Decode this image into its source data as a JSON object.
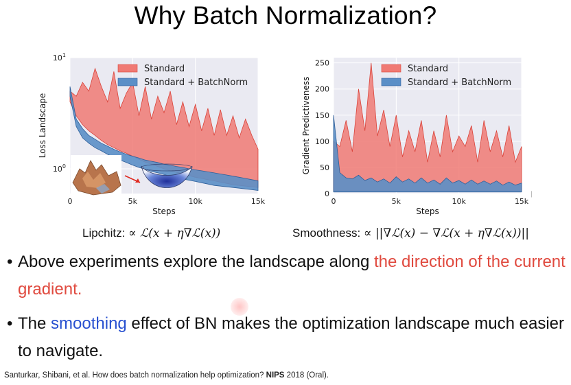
{
  "slide": {
    "title": "Why Batch Normalization?",
    "formula_left": {
      "label": "Lipchitz:",
      "expr": "∝ ℒ(x + η∇ℒ(x))"
    },
    "formula_right": {
      "label": "Smoothness:",
      "expr": "∝ ||∇ℒ(x) − ∇ℒ(x + η∇ℒ(x))||"
    },
    "bullets": [
      {
        "parts": [
          {
            "text": "Above experiments explore the landscape along ",
            "style": "normal"
          },
          {
            "text": "the direction of the current gradient.",
            "style": "red"
          }
        ]
      },
      {
        "parts": [
          {
            "text": "The ",
            "style": "normal"
          },
          {
            "text": "smoothing",
            "style": "blue"
          },
          {
            "text": " effect of BN makes the optimization landscape much easier to navigate.",
            "style": "normal"
          }
        ]
      }
    ],
    "citation": {
      "text": "Santurkar, Shibani, et al. How does batch normalization help optimization? ",
      "venue": "NIPS",
      "tail": " 2018 (Oral)."
    }
  },
  "colors": {
    "standard": "#f07a74",
    "standard_edge": "#d9433a",
    "batchnorm": "#5b8fc7",
    "batchnorm_edge": "#2e5f9a",
    "title_red": "#e04a3f",
    "smoothing_blue": "#2850d0"
  },
  "icons": {
    "left_surface": "rough-loss-surface-3d",
    "right_surface": "smooth-bowl-surface-3d",
    "arrow": "red-arrow-right-icon"
  },
  "chart_data": [
    {
      "type": "area",
      "xlabel": "Steps",
      "ylabel": "Loss Landscape",
      "yscale": "log",
      "xlim": [
        0,
        15000
      ],
      "ylim": [
        0.6,
        10
      ],
      "xticks": [
        {
          "v": 0,
          "label": "0"
        },
        {
          "v": 5000,
          "label": "5k"
        },
        {
          "v": 10000,
          "label": "10k"
        },
        {
          "v": 15000,
          "label": "15k"
        }
      ],
      "yticks": [
        {
          "v": 10,
          "base": "10",
          "exp": "1"
        },
        {
          "v": 1,
          "base": "10",
          "exp": "0"
        }
      ],
      "legend": "top-right",
      "grid": true,
      "series": [
        {
          "name": "Standard",
          "x": [
            0,
            500,
            1000,
            1500,
            2000,
            2500,
            3000,
            3500,
            4000,
            4500,
            5000,
            5500,
            6000,
            6500,
            7000,
            7500,
            8000,
            8500,
            9000,
            9500,
            10000,
            10500,
            11000,
            11500,
            12000,
            12500,
            13000,
            13500,
            14000,
            14500,
            15000
          ],
          "lower": [
            4.0,
            3.0,
            2.5,
            2.2,
            2.0,
            1.8,
            1.65,
            1.55,
            1.45,
            1.38,
            1.3,
            1.22,
            1.15,
            1.1,
            1.05,
            1.0,
            0.96,
            0.93,
            0.9,
            0.87,
            0.84,
            0.82,
            0.8,
            0.78,
            0.76,
            0.74,
            0.72,
            0.71,
            0.7,
            0.69,
            0.68
          ],
          "upper": [
            5.0,
            4.5,
            6.0,
            5.0,
            8.0,
            5.5,
            4.0,
            7.5,
            3.5,
            4.8,
            6.0,
            3.0,
            5.5,
            2.8,
            4.5,
            3.2,
            5.0,
            2.5,
            4.0,
            2.4,
            3.8,
            2.2,
            3.5,
            2.0,
            3.4,
            2.0,
            3.0,
            1.9,
            2.8,
            2.0,
            1.5
          ]
        },
        {
          "name": "Standard + BatchNorm",
          "x": [
            0,
            500,
            1000,
            1500,
            2000,
            2500,
            3000,
            3500,
            4000,
            4500,
            5000,
            5500,
            6000,
            6500,
            7000,
            7500,
            8000,
            8500,
            9000,
            9500,
            10000,
            10500,
            11000,
            11500,
            12000,
            12500,
            13000,
            13500,
            14000,
            14500,
            15000
          ],
          "lower": [
            4.5,
            2.4,
            1.9,
            1.7,
            1.55,
            1.45,
            1.35,
            1.27,
            1.2,
            1.14,
            1.08,
            1.03,
            0.99,
            0.95,
            0.92,
            0.89,
            0.86,
            0.83,
            0.81,
            0.79,
            0.77,
            0.75,
            0.73,
            0.71,
            0.7,
            0.69,
            0.68,
            0.67,
            0.66,
            0.65,
            0.64
          ],
          "upper": [
            5.5,
            2.8,
            2.3,
            2.0,
            1.85,
            1.7,
            1.6,
            1.5,
            1.42,
            1.35,
            1.3,
            1.25,
            1.2,
            1.17,
            1.14,
            1.1,
            1.08,
            1.05,
            1.03,
            1.0,
            0.98,
            0.96,
            0.94,
            0.92,
            0.9,
            0.88,
            0.86,
            0.84,
            0.82,
            0.8,
            0.78
          ]
        }
      ]
    },
    {
      "type": "area",
      "xlabel": "Steps",
      "ylabel": "Gradient Predictiveness",
      "xlim": [
        0,
        15000
      ],
      "ylim": [
        0,
        260
      ],
      "xticks": [
        {
          "v": 0,
          "label": "0"
        },
        {
          "v": 5000,
          "label": "5k"
        },
        {
          "v": 10000,
          "label": "10k"
        },
        {
          "v": 15000,
          "label": "15k"
        }
      ],
      "yticks": [
        {
          "v": 0,
          "label": "0"
        },
        {
          "v": 50,
          "label": "50"
        },
        {
          "v": 100,
          "label": "100"
        },
        {
          "v": 150,
          "label": "150"
        },
        {
          "v": 200,
          "label": "200"
        },
        {
          "v": 250,
          "label": "250"
        }
      ],
      "legend": "top-right",
      "grid": true,
      "series": [
        {
          "name": "Standard",
          "x": [
            0,
            500,
            1000,
            1500,
            2000,
            2500,
            3000,
            3500,
            4000,
            4500,
            5000,
            5500,
            6000,
            6500,
            7000,
            7500,
            8000,
            8500,
            9000,
            9500,
            10000,
            10500,
            11000,
            11500,
            12000,
            12500,
            13000,
            13500,
            14000,
            14500,
            15000
          ],
          "lower": [
            5,
            5,
            5,
            5,
            5,
            5,
            5,
            5,
            5,
            5,
            5,
            5,
            5,
            5,
            5,
            5,
            5,
            5,
            5,
            5,
            5,
            5,
            5,
            5,
            5,
            5,
            5,
            5,
            5,
            5,
            5
          ],
          "upper": [
            100,
            90,
            140,
            80,
            200,
            120,
            250,
            110,
            160,
            90,
            150,
            70,
            120,
            80,
            140,
            60,
            120,
            70,
            150,
            80,
            110,
            90,
            130,
            60,
            140,
            80,
            120,
            70,
            130,
            60,
            90
          ]
        },
        {
          "name": "Standard + BatchNorm",
          "x": [
            0,
            500,
            1000,
            1500,
            2000,
            2500,
            3000,
            3500,
            4000,
            4500,
            5000,
            5500,
            6000,
            6500,
            7000,
            7500,
            8000,
            8500,
            9000,
            9500,
            10000,
            10500,
            11000,
            11500,
            12000,
            12500,
            13000,
            13500,
            14000,
            14500,
            15000
          ],
          "lower": [
            3,
            3,
            3,
            3,
            3,
            3,
            3,
            3,
            3,
            3,
            3,
            3,
            3,
            3,
            3,
            3,
            3,
            3,
            3,
            3,
            3,
            3,
            3,
            3,
            3,
            3,
            3,
            3,
            3,
            3,
            3
          ],
          "upper": [
            150,
            40,
            30,
            28,
            35,
            25,
            30,
            22,
            28,
            20,
            32,
            22,
            28,
            20,
            30,
            20,
            26,
            18,
            30,
            20,
            25,
            18,
            26,
            18,
            24,
            18,
            24,
            16,
            22,
            16,
            20
          ]
        }
      ]
    }
  ]
}
